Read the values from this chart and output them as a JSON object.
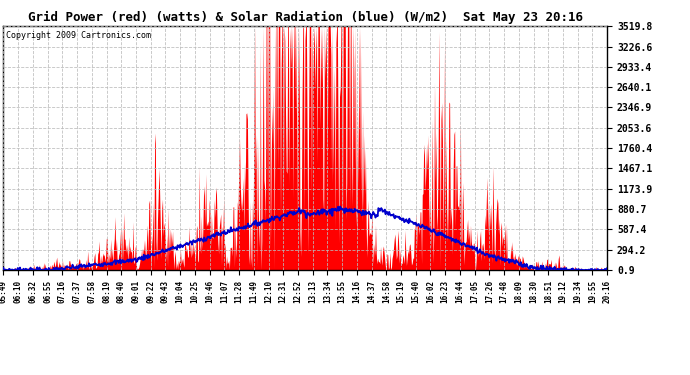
{
  "title": "Grid Power (red) (watts) & Solar Radiation (blue) (W/m2)  Sat May 23 20:16",
  "copyright": "Copyright 2009 Cartronics.com",
  "yticks": [
    0.9,
    294.2,
    587.4,
    880.7,
    1173.9,
    1467.1,
    1760.4,
    2053.6,
    2346.9,
    2640.1,
    2933.4,
    3226.6,
    3519.8
  ],
  "ymin": 0.9,
  "ymax": 3519.8,
  "bg_color": "#ffffff",
  "plot_bg": "#ffffff",
  "grid_color": "#bbbbbb",
  "red_color": "#ff0000",
  "blue_color": "#0000cc",
  "fill_color": "#ff0000",
  "xtick_labels": [
    "05:49",
    "06:10",
    "06:32",
    "06:55",
    "07:16",
    "07:37",
    "07:58",
    "08:19",
    "08:40",
    "09:01",
    "09:22",
    "09:43",
    "10:04",
    "10:25",
    "10:46",
    "11:07",
    "11:28",
    "11:49",
    "12:10",
    "12:31",
    "12:52",
    "13:13",
    "13:34",
    "13:55",
    "14:16",
    "14:37",
    "14:58",
    "15:19",
    "15:40",
    "16:02",
    "16:23",
    "16:44",
    "17:05",
    "17:26",
    "17:48",
    "18:09",
    "18:30",
    "18:51",
    "19:12",
    "19:34",
    "19:55",
    "20:16"
  ]
}
